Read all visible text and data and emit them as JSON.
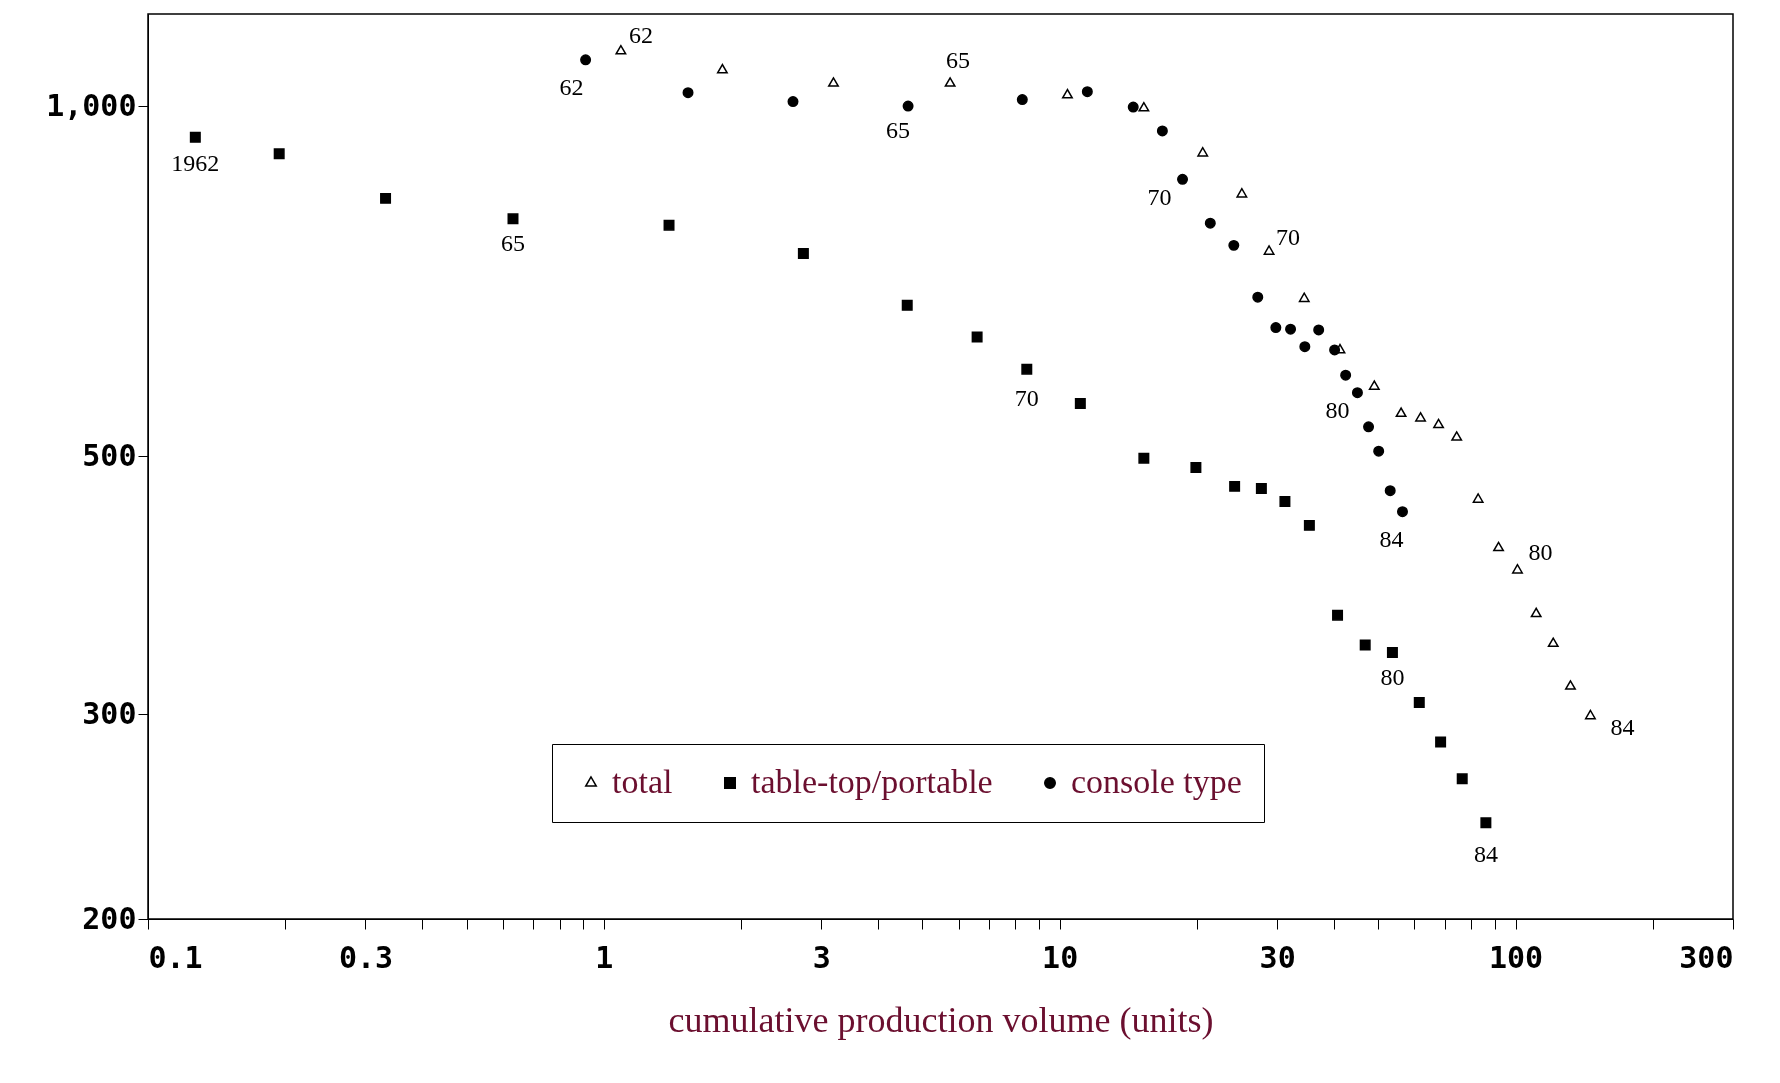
{
  "chart_data": {
    "type": "scatter",
    "xlabel": "cumulative production volume (units)",
    "log": "xy",
    "legend": "bottom",
    "grid": false,
    "xlim": [
      0.1,
      300
    ],
    "ylim": [
      200,
      1200
    ],
    "xticks": [
      0.1,
      {
        "value": 0.2,
        "label": null
      },
      0.3,
      {
        "value": 0.4,
        "label": null
      },
      {
        "value": 0.5,
        "label": null
      },
      {
        "value": 0.6,
        "label": null
      },
      {
        "value": 0.7,
        "label": null
      },
      {
        "value": 0.8,
        "label": null
      },
      {
        "value": 0.9,
        "label": null
      },
      1,
      {
        "value": 2,
        "label": null
      },
      3,
      {
        "value": 4,
        "label": null
      },
      {
        "value": 5,
        "label": null
      },
      {
        "value": 6,
        "label": null
      },
      {
        "value": 7,
        "label": null
      },
      {
        "value": 8,
        "label": null
      },
      {
        "value": 9,
        "label": null
      },
      10,
      {
        "value": 20,
        "label": null
      },
      30,
      {
        "value": 40,
        "label": null
      },
      {
        "value": 50,
        "label": null
      },
      {
        "value": 60,
        "label": null
      },
      {
        "value": 70,
        "label": null
      },
      {
        "value": 80,
        "label": null
      },
      {
        "value": 90,
        "label": null
      },
      100,
      {
        "value": 200,
        "label": null
      },
      300
    ],
    "yticks": [
      200,
      300,
      500,
      {
        "value": 1000,
        "label": "1,000"
      }
    ],
    "series": [
      {
        "name": "total",
        "color": "#000000",
        "marker": "triangle",
        "x": [
          1.09,
          1.82,
          3.19,
          5.75,
          10.4,
          15.3,
          20.6,
          25.1,
          28.8,
          34.4,
          41.2,
          49.0,
          56.1,
          61.9,
          67.8,
          74.3,
          82.8,
          91.8,
          101,
          111,
          121,
          132,
          146
        ],
        "values": [
          1115,
          1074,
          1046,
          1046,
          1022,
          996,
          911,
          840,
          750,
          683,
          617,
          574,
          544,
          539,
          532,
          519,
          459,
          417,
          399,
          366,
          345,
          317,
          299
        ]
      },
      {
        "name": "table-top/portable",
        "color": "#000000",
        "marker": "square",
        "x": [
          0.127,
          0.194,
          0.332,
          0.632,
          1.39,
          2.74,
          4.63,
          6.59,
          8.47,
          11.1,
          15.3,
          19.9,
          24.2,
          27.7,
          31.2,
          35.3,
          40.7,
          46.8,
          53.7,
          61.5,
          68.5,
          76.4,
          86.1
        ],
        "values": [
          940,
          910,
          833,
          800,
          790,
          747,
          674,
          633,
          594,
          555,
          498,
          489,
          471,
          469,
          457,
          436,
          365,
          344,
          339,
          307,
          284,
          264,
          242
        ]
      },
      {
        "name": "console type",
        "color": "#000000",
        "marker": "circle",
        "x": [
          0.912,
          1.53,
          2.6,
          4.65,
          8.28,
          11.5,
          14.5,
          16.8,
          18.6,
          21.4,
          24.1,
          27.2,
          29.8,
          32.1,
          34.5,
          37.0,
          40.1,
          42.4,
          45.0,
          47.6,
          50.1,
          53.1,
          56.5
        ],
        "values": [
          1096,
          1027,
          1009,
          1000,
          1013,
          1029,
          998,
          952,
          865,
          793,
          759,
          685,
          645,
          643,
          621,
          642,
          617,
          587,
          567,
          530,
          505,
          467,
          448
        ]
      }
    ],
    "annotations": [
      {
        "text": "1962",
        "x": 0.127,
        "y": 940
      },
      {
        "text": "65",
        "x": 0.632,
        "y": 800
      },
      {
        "text": "70",
        "x": 8.47,
        "y": 594
      },
      {
        "text": "80",
        "x": 53.7,
        "y": 339
      },
      {
        "text": "84",
        "x": 86.1,
        "y": 242
      },
      {
        "text": "62",
        "x": 0.912,
        "y": 1096
      },
      {
        "text": "65",
        "x": 4.65,
        "y": 1000
      },
      {
        "text": "70",
        "x": 18.6,
        "y": 865
      },
      {
        "text": "80",
        "x": 45.0,
        "y": 567
      },
      {
        "text": "84",
        "x": 56.5,
        "y": 448
      },
      {
        "text": "62",
        "x": 1.09,
        "y": 1115
      },
      {
        "text": "65",
        "x": 5.75,
        "y": 1046
      },
      {
        "text": "70",
        "x": 28.8,
        "y": 750
      },
      {
        "text": "80",
        "x": 101,
        "y": 399
      },
      {
        "text": "84",
        "x": 146,
        "y": 299
      }
    ]
  }
}
